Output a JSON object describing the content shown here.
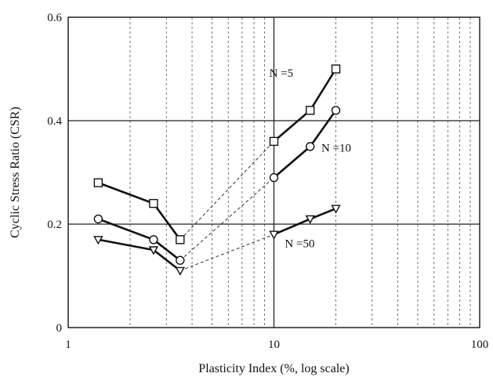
{
  "chart_data": {
    "type": "line",
    "title": "",
    "xlabel": "Plasticity Index (%, log scale)",
    "ylabel": "Cyclic Stress Ratio (CSR)",
    "x_scale": "log",
    "xlim": [
      1,
      100
    ],
    "ylim": [
      0,
      0.6
    ],
    "x_ticks": [
      {
        "value": 1,
        "label": "1"
      },
      {
        "value": 10,
        "label": "10"
      },
      {
        "value": 100,
        "label": "100"
      }
    ],
    "y_ticks": [
      {
        "value": 0,
        "label": "0"
      },
      {
        "value": 0.2,
        "label": "0.2"
      },
      {
        "value": 0.4,
        "label": "0.4"
      },
      {
        "value": 0.6,
        "label": "0.6"
      }
    ],
    "grid": "major solid, minor dashed",
    "series": [
      {
        "name": "N =5",
        "marker": "square",
        "segments": [
          [
            {
              "x": 1.4,
              "y": 0.28
            },
            {
              "x": 2.6,
              "y": 0.24
            },
            {
              "x": 3.5,
              "y": 0.17
            }
          ],
          [
            {
              "x": 10,
              "y": 0.36
            },
            {
              "x": 15,
              "y": 0.42
            },
            {
              "x": 20,
              "y": 0.5
            }
          ]
        ]
      },
      {
        "name": "N =10",
        "marker": "circle",
        "segments": [
          [
            {
              "x": 1.4,
              "y": 0.21
            },
            {
              "x": 2.6,
              "y": 0.17
            },
            {
              "x": 3.5,
              "y": 0.13
            }
          ],
          [
            {
              "x": 10,
              "y": 0.29
            },
            {
              "x": 15,
              "y": 0.35
            },
            {
              "x": 20,
              "y": 0.42
            }
          ]
        ]
      },
      {
        "name": "N =50",
        "marker": "triangle-down",
        "segments": [
          [
            {
              "x": 1.4,
              "y": 0.17
            },
            {
              "x": 2.6,
              "y": 0.15
            },
            {
              "x": 3.5,
              "y": 0.11
            }
          ],
          [
            {
              "x": 10,
              "y": 0.18
            },
            {
              "x": 15,
              "y": 0.21
            },
            {
              "x": 20,
              "y": 0.23
            }
          ]
        ]
      }
    ],
    "connectors": [
      {
        "from": {
          "x": 3.5,
          "y": 0.17
        },
        "to": {
          "x": 10,
          "y": 0.36
        },
        "style": "dashed"
      },
      {
        "from": {
          "x": 3.5,
          "y": 0.13
        },
        "to": {
          "x": 10,
          "y": 0.29
        },
        "style": "dashed"
      },
      {
        "from": {
          "x": 3.5,
          "y": 0.11
        },
        "to": {
          "x": 10,
          "y": 0.18
        },
        "style": "dashed"
      }
    ],
    "annotations": [
      {
        "name": "n5",
        "text": "N    =5",
        "x": 9.5,
        "y": 0.485
      },
      {
        "name": "n10",
        "text": "N    =10",
        "x": 17,
        "y": 0.34
      },
      {
        "name": "n50",
        "text": "N    =50",
        "x": 11.3,
        "y": 0.155
      }
    ]
  }
}
